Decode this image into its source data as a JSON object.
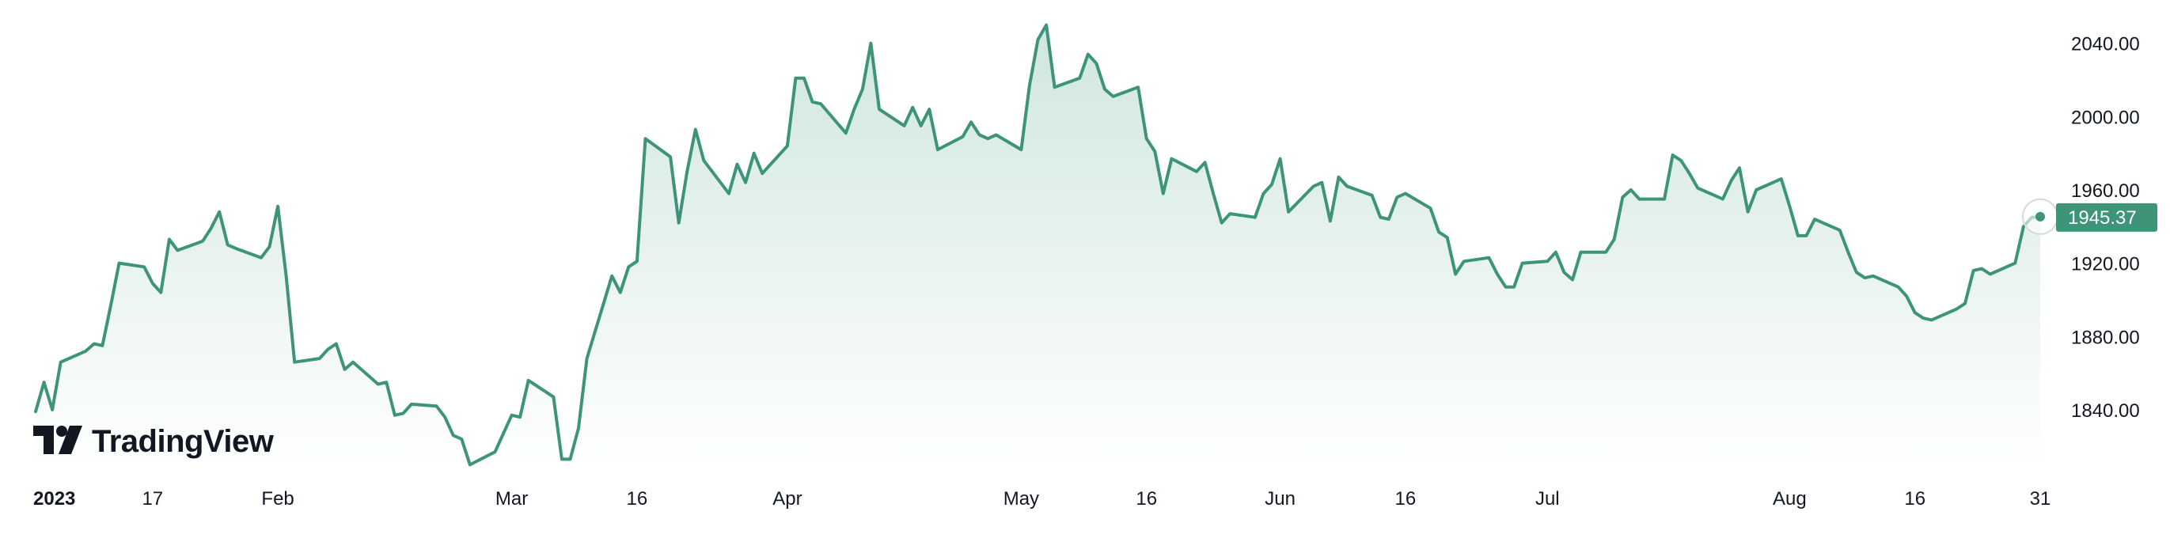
{
  "brand": {
    "logo_text": "TradingView"
  },
  "colors": {
    "line": "#3d9479",
    "fill_top": "#cfe6de",
    "fill_bottom": "#ffffff",
    "label_bg": "#3d9479",
    "text": "#131722"
  },
  "chart_data": {
    "type": "area",
    "title": "",
    "xlabel": "",
    "ylabel": "",
    "x_range": [
      "2023-01-03",
      "2023-08-31"
    ],
    "ylim": [
      1808,
      2055
    ],
    "y_ticks": [
      "1840.00",
      "1880.00",
      "1920.00",
      "1960.00",
      "2000.00",
      "2040.00"
    ],
    "x_ticks": [
      {
        "label": "2023",
        "date": "2023-01-01",
        "bold": true
      },
      {
        "label": "17",
        "date": "2023-01-17"
      },
      {
        "label": "Feb",
        "date": "2023-02-01"
      },
      {
        "label": "Mar",
        "date": "2023-03-01"
      },
      {
        "label": "16",
        "date": "2023-03-16"
      },
      {
        "label": "Apr",
        "date": "2023-04-03"
      },
      {
        "label": "May",
        "date": "2023-05-01"
      },
      {
        "label": "16",
        "date": "2023-05-16"
      },
      {
        "label": "Jun",
        "date": "2023-06-01"
      },
      {
        "label": "16",
        "date": "2023-06-16"
      },
      {
        "label": "Jul",
        "date": "2023-07-03"
      },
      {
        "label": "Aug",
        "date": "2023-08-01"
      },
      {
        "label": "16",
        "date": "2023-08-16"
      },
      {
        "label": "31",
        "date": "2023-08-31"
      }
    ],
    "last_value_label": "1945.37",
    "grid": false,
    "series": [
      {
        "x": [
          "2023-01-03",
          "2023-01-04",
          "2023-01-05",
          "2023-01-06",
          "2023-01-09",
          "2023-01-10",
          "2023-01-11",
          "2023-01-12",
          "2023-01-13",
          "2023-01-16",
          "2023-01-17",
          "2023-01-18",
          "2023-01-19",
          "2023-01-20",
          "2023-01-23",
          "2023-01-24",
          "2023-01-25",
          "2023-01-26",
          "2023-01-27",
          "2023-01-30",
          "2023-01-31",
          "2023-02-01",
          "2023-02-02",
          "2023-02-03",
          "2023-02-06",
          "2023-02-07",
          "2023-02-08",
          "2023-02-09",
          "2023-02-10",
          "2023-02-13",
          "2023-02-14",
          "2023-02-15",
          "2023-02-16",
          "2023-02-17",
          "2023-02-20",
          "2023-02-21",
          "2023-02-22",
          "2023-02-23",
          "2023-02-24",
          "2023-02-27",
          "2023-02-28",
          "2023-03-01",
          "2023-03-02",
          "2023-03-03",
          "2023-03-06",
          "2023-03-07",
          "2023-03-08",
          "2023-03-09",
          "2023-03-10",
          "2023-03-13",
          "2023-03-14",
          "2023-03-15",
          "2023-03-16",
          "2023-03-17",
          "2023-03-20",
          "2023-03-21",
          "2023-03-22",
          "2023-03-23",
          "2023-03-24",
          "2023-03-27",
          "2023-03-28",
          "2023-03-29",
          "2023-03-30",
          "2023-03-31",
          "2023-04-03",
          "2023-04-04",
          "2023-04-05",
          "2023-04-06",
          "2023-04-07",
          "2023-04-10",
          "2023-04-11",
          "2023-04-12",
          "2023-04-13",
          "2023-04-14",
          "2023-04-17",
          "2023-04-18",
          "2023-04-19",
          "2023-04-20",
          "2023-04-21",
          "2023-04-24",
          "2023-04-25",
          "2023-04-26",
          "2023-04-27",
          "2023-04-28",
          "2023-05-01",
          "2023-05-02",
          "2023-05-03",
          "2023-05-04",
          "2023-05-05",
          "2023-05-08",
          "2023-05-09",
          "2023-05-10",
          "2023-05-11",
          "2023-05-12",
          "2023-05-15",
          "2023-05-16",
          "2023-05-17",
          "2023-05-18",
          "2023-05-19",
          "2023-05-22",
          "2023-05-23",
          "2023-05-24",
          "2023-05-25",
          "2023-05-26",
          "2023-05-29",
          "2023-05-30",
          "2023-05-31",
          "2023-06-01",
          "2023-06-02",
          "2023-06-05",
          "2023-06-06",
          "2023-06-07",
          "2023-06-08",
          "2023-06-09",
          "2023-06-12",
          "2023-06-13",
          "2023-06-14",
          "2023-06-15",
          "2023-06-16",
          "2023-06-19",
          "2023-06-20",
          "2023-06-21",
          "2023-06-22",
          "2023-06-23",
          "2023-06-26",
          "2023-06-27",
          "2023-06-28",
          "2023-06-29",
          "2023-06-30",
          "2023-07-03",
          "2023-07-04",
          "2023-07-05",
          "2023-07-06",
          "2023-07-07",
          "2023-07-10",
          "2023-07-11",
          "2023-07-12",
          "2023-07-13",
          "2023-07-14",
          "2023-07-17",
          "2023-07-18",
          "2023-07-19",
          "2023-07-20",
          "2023-07-21",
          "2023-07-24",
          "2023-07-25",
          "2023-07-26",
          "2023-07-27",
          "2023-07-28",
          "2023-07-31",
          "2023-08-01",
          "2023-08-02",
          "2023-08-03",
          "2023-08-04",
          "2023-08-07",
          "2023-08-08",
          "2023-08-09",
          "2023-08-10",
          "2023-08-11",
          "2023-08-14",
          "2023-08-15",
          "2023-08-16",
          "2023-08-17",
          "2023-08-18",
          "2023-08-21",
          "2023-08-22",
          "2023-08-23",
          "2023-08-24",
          "2023-08-25",
          "2023-08-28",
          "2023-08-29",
          "2023-08-30",
          "2023-08-31"
        ],
        "values": [
          1839,
          1855,
          1840,
          1866,
          1872,
          1876,
          1875,
          1897,
          1920,
          1918,
          1909,
          1904,
          1933,
          1927,
          1932,
          1939,
          1948,
          1930,
          1928,
          1923,
          1929,
          1951,
          1913,
          1866,
          1868,
          1873,
          1876,
          1862,
          1866,
          1854,
          1855,
          1837,
          1838,
          1843,
          1842,
          1836,
          1826,
          1824,
          1810,
          1817,
          1827,
          1837,
          1836,
          1856,
          1847,
          1813,
          1813,
          1830,
          1868,
          1913,
          1904,
          1918,
          1921,
          1988,
          1978,
          1942,
          1970,
          1993,
          1976,
          1958,
          1974,
          1964,
          1980,
          1969,
          1984,
          2021,
          2021,
          2008,
          2007,
          1991,
          2004,
          2015,
          2040,
          2004,
          1995,
          2005,
          1995,
          2004,
          1982,
          1989,
          1997,
          1990,
          1988,
          1990,
          1982,
          2017,
          2042,
          2050,
          2016,
          2021,
          2034,
          2029,
          2015,
          2011,
          2016,
          1988,
          1981,
          1958,
          1977,
          1970,
          1975,
          1958,
          1942,
          1947,
          1945,
          1958,
          1963,
          1977,
          1948,
          1962,
          1964,
          1943,
          1967,
          1962,
          1957,
          1945,
          1944,
          1956,
          1958,
          1950,
          1937,
          1934,
          1914,
          1921,
          1923,
          1914,
          1907,
          1907,
          1920,
          1921,
          1926,
          1915,
          1911,
          1926,
          1926,
          1933,
          1956,
          1960,
          1955,
          1955,
          1979,
          1976,
          1969,
          1961,
          1955,
          1965,
          1972,
          1948,
          1960,
          1966,
          1951,
          1935,
          1935,
          1944,
          1938,
          1926,
          1915,
          1912,
          1913,
          1907,
          1902,
          1893,
          1890,
          1889,
          1895,
          1898,
          1916,
          1917,
          1914,
          1920,
          1940,
          1945,
          1945.37
        ]
      }
    ]
  }
}
